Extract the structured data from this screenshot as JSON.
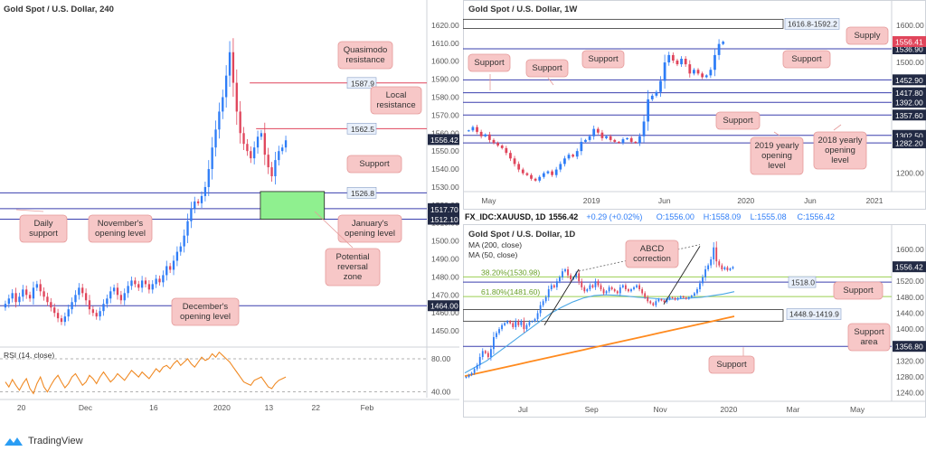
{
  "colors": {
    "up": "#2e7df7",
    "down": "#e0455b",
    "hline": "#3a3fae",
    "note_fill": "#f7c7c7",
    "note_stroke": "#e59a9a",
    "zone_fill": "#8ff08f",
    "rsi": "#f08a24",
    "ma200": "#ff8a1e",
    "ma50": "#4aa7e6",
    "tag_fill": "#e9f0fb",
    "tag_dark": "#222a44",
    "tag_red": "#e0455b",
    "fib": "#9ccf52"
  },
  "footer": {
    "brand": "TradingView"
  },
  "chart_data": [
    {
      "id": "h4",
      "type": "candlestick",
      "title": "Gold Spot / U.S. Dollar, 240",
      "ylim": [
        1443,
        1625
      ],
      "yticks": [
        "1620.00",
        "1610.00",
        "1600.00",
        "1590.00",
        "1580.00",
        "1570.00",
        "1560.00",
        "1550.00",
        "1540.00",
        "1530.00",
        "1520.00",
        "1510.00",
        "1500.00",
        "1490.00",
        "1480.00",
        "1470.00",
        "1460.00",
        "1450.00"
      ],
      "ytick_values": [
        1620,
        1610,
        1600,
        1590,
        1580,
        1570,
        1560,
        1550,
        1540,
        1530,
        1520,
        1510,
        1500,
        1490,
        1480,
        1470,
        1460,
        1450
      ],
      "xticks": [
        "20",
        "Dec",
        "16",
        "2020",
        "13",
        "22",
        "Feb"
      ],
      "xtick_positions": [
        0.05,
        0.2,
        0.36,
        0.52,
        0.63,
        0.74,
        0.86
      ],
      "closes": [
        1465,
        1468,
        1471,
        1466,
        1469,
        1473,
        1470,
        1468,
        1474,
        1476,
        1472,
        1469,
        1466,
        1463,
        1460,
        1457,
        1455,
        1458,
        1462,
        1466,
        1470,
        1474,
        1471,
        1467,
        1462,
        1460,
        1458,
        1461,
        1465,
        1468,
        1472,
        1474,
        1470,
        1467,
        1471,
        1475,
        1478,
        1476,
        1474,
        1478,
        1476,
        1473,
        1476,
        1479,
        1477,
        1481,
        1486,
        1484,
        1489,
        1494,
        1497,
        1503,
        1511,
        1518,
        1522,
        1521,
        1525,
        1530,
        1540,
        1552,
        1562,
        1572,
        1580,
        1592,
        1605,
        1588,
        1572,
        1560,
        1554,
        1550,
        1546,
        1552,
        1558,
        1560,
        1548,
        1541,
        1536,
        1545,
        1550,
        1552,
        1556
      ],
      "last_price": "1556.42",
      "hlines": [
        {
          "value": 1587.9,
          "label": "1587.9",
          "kind": "red",
          "x0": 0.585
        },
        {
          "value": 1562.5,
          "label": "1562.5",
          "kind": "red",
          "x0": 0.6
        },
        {
          "value": 1526.8,
          "label": "1526.8",
          "kind": "blue",
          "x0": 0.0
        },
        {
          "value": 1518.0,
          "label": "1518.00",
          "kind": "blue",
          "x0": 0.0
        },
        {
          "value": 1512.1,
          "label": "1512.10",
          "kind": "blue",
          "x0": 0.0
        },
        {
          "value": 1464.0,
          "label": "1464.00",
          "kind": "blue",
          "x0": 0.0
        }
      ],
      "axis_tags": [
        {
          "value": 1518.0,
          "label": "1518.00",
          "style": "dark"
        },
        {
          "value": 1517.7,
          "label": "1517.70",
          "style": "dark"
        },
        {
          "value": 1512.1,
          "label": "1512.10",
          "style": "dark"
        },
        {
          "value": 1464.0,
          "label": "1464.00",
          "style": "dark"
        },
        {
          "value": 1556.42,
          "label": "1556.42",
          "style": "dark"
        }
      ],
      "zone": {
        "y0": 1512.1,
        "y1": 1527.5,
        "x0": 0.61,
        "x1": 0.76
      },
      "annotations": [
        {
          "text": [
            "Quasimodo",
            "resistance"
          ]
        },
        {
          "text": [
            "Local",
            "resistance"
          ]
        },
        {
          "text": [
            "Support"
          ]
        },
        {
          "text": [
            "Daily",
            "support"
          ]
        },
        {
          "text": [
            "November's",
            "opening level"
          ]
        },
        {
          "text": [
            "January's",
            "opening level"
          ]
        },
        {
          "text": [
            "Potential",
            "reversal",
            "zone"
          ]
        },
        {
          "text": [
            "December's",
            "opening level"
          ]
        }
      ],
      "rsi": {
        "title": "RSI (14, close)",
        "ylim": [
          33,
          92
        ],
        "yticks": [
          "80.00",
          "40.00"
        ],
        "ytick_values": [
          80,
          40
        ],
        "values": [
          52,
          46,
          55,
          48,
          42,
          50,
          56,
          44,
          38,
          50,
          58,
          46,
          40,
          48,
          55,
          60,
          52,
          45,
          50,
          58,
          62,
          55,
          48,
          52,
          60,
          56,
          50,
          58,
          64,
          58,
          52,
          56,
          62,
          58,
          54,
          60,
          66,
          62,
          58,
          64,
          60,
          56,
          62,
          68,
          64,
          70,
          72,
          68,
          74,
          78,
          72,
          76,
          80,
          74,
          70,
          76,
          82,
          78,
          80,
          86,
          82,
          88,
          84,
          80,
          76,
          70,
          64,
          58,
          52,
          50,
          48,
          54,
          56,
          58,
          52,
          46,
          44,
          50,
          54,
          56,
          58
        ]
      }
    },
    {
      "id": "w1",
      "type": "candlestick",
      "title": "Gold Spot / U.S. Dollar, 1W",
      "ylim": [
        1160,
        1625
      ],
      "yticks": [
        "1600.00",
        "1500.00",
        "1400.00",
        "1300.00",
        "1200.00"
      ],
      "ytick_values": [
        1600,
        1500,
        1400,
        1300,
        1200
      ],
      "xticks": [
        "May",
        "2019",
        "Jun",
        "2020",
        "Jun",
        "2021"
      ],
      "xtick_positions": [
        0.06,
        0.3,
        0.47,
        0.66,
        0.81,
        0.96
      ],
      "closes": [
        1316,
        1325,
        1312,
        1300,
        1305,
        1290,
        1282,
        1275,
        1268,
        1255,
        1240,
        1225,
        1210,
        1200,
        1195,
        1185,
        1180,
        1190,
        1200,
        1205,
        1195,
        1210,
        1225,
        1240,
        1250,
        1245,
        1260,
        1285,
        1290,
        1300,
        1320,
        1310,
        1295,
        1300,
        1290,
        1285,
        1282,
        1292,
        1295,
        1285,
        1282,
        1300,
        1340,
        1400,
        1410,
        1420,
        1450,
        1500,
        1520,
        1505,
        1495,
        1510,
        1495,
        1470,
        1480,
        1470,
        1460,
        1465,
        1480,
        1520,
        1550,
        1556
      ],
      "last_price": "1556.41",
      "hlines": [
        {
          "value": 1536.9,
          "label": "1536.90"
        },
        {
          "value": 1452.9,
          "label": "1452.90"
        },
        {
          "value": 1417.8,
          "label": "1417.80"
        },
        {
          "value": 1392.0,
          "label": "1392.00"
        },
        {
          "value": 1357.6,
          "label": "1357.60"
        },
        {
          "value": 1302.5,
          "label": "1302.50"
        },
        {
          "value": 1282.2,
          "label": "1282.20"
        }
      ],
      "supply_box": {
        "label": "1616.8-1592.2",
        "y0": 1592.2,
        "y1": 1616.8
      },
      "annotations": [
        {
          "text": [
            "Supply"
          ]
        },
        {
          "text": [
            "Support"
          ]
        },
        {
          "text": [
            "Support"
          ]
        },
        {
          "text": [
            "Support"
          ]
        },
        {
          "text": [
            "Support"
          ]
        },
        {
          "text": [
            "Support"
          ]
        },
        {
          "text": [
            "2019 yearly",
            "opening",
            "level"
          ]
        },
        {
          "text": [
            "2018 yearly",
            "opening",
            "level"
          ]
        }
      ]
    },
    {
      "id": "d1",
      "type": "candlestick",
      "header": {
        "symbol": "FX_IDC:XAUUSD, 1D",
        "price": "1556.42",
        "change": "+0.29 (+0.02%)",
        "open": "O:1556.00",
        "high": "H:1558.09",
        "low": "L:1555.08",
        "close": "C:1556.42"
      },
      "title": "Gold Spot / U.S. Dollar, 1D",
      "legend": [
        "MA (200, close)",
        "MA (50, close)"
      ],
      "ylim": [
        1228,
        1618
      ],
      "yticks": [
        "1600.00",
        "1560.00",
        "1520.00",
        "1480.00",
        "1440.00",
        "1400.00",
        "1360.00",
        "1320.00",
        "1280.00",
        "1240.00"
      ],
      "ytick_values": [
        1600,
        1560,
        1520,
        1480,
        1440,
        1400,
        1360,
        1320,
        1280,
        1240
      ],
      "xticks": [
        "Jul",
        "Sep",
        "Nov",
        "2020",
        "Mar",
        "May"
      ],
      "xtick_positions": [
        0.14,
        0.3,
        0.46,
        0.62,
        0.77,
        0.92
      ],
      "closes": [
        1280,
        1285,
        1290,
        1300,
        1310,
        1330,
        1345,
        1340,
        1330,
        1350,
        1380,
        1390,
        1400,
        1410,
        1415,
        1420,
        1415,
        1405,
        1420,
        1410,
        1420,
        1400,
        1410,
        1418,
        1420,
        1425,
        1440,
        1460,
        1470,
        1480,
        1500,
        1510,
        1505,
        1520,
        1530,
        1545,
        1550,
        1535,
        1525,
        1530,
        1540,
        1520,
        1505,
        1495,
        1500,
        1510,
        1505,
        1520,
        1510,
        1500,
        1490,
        1495,
        1505,
        1500,
        1495,
        1490,
        1505,
        1510,
        1500,
        1495,
        1500,
        1505,
        1510,
        1500,
        1490,
        1480,
        1470,
        1465,
        1460,
        1470,
        1475,
        1472,
        1468,
        1475,
        1480,
        1478,
        1474,
        1478,
        1482,
        1479,
        1476,
        1480,
        1484,
        1490,
        1500,
        1515,
        1530,
        1550,
        1560,
        1575,
        1605,
        1570,
        1560,
        1550,
        1555,
        1548,
        1552,
        1556
      ],
      "last_price": "1556.42",
      "fibs": [
        {
          "label": "38.20%(1530.98)",
          "value": 1530.98
        },
        {
          "label": "61.80%(1481.60)",
          "value": 1481.6
        }
      ],
      "hlines": [
        {
          "value": 1518.0,
          "label": "1518.0"
        },
        {
          "value": 1356.8,
          "label": "1356.80"
        }
      ],
      "support_box": {
        "label": "1448.9-1419.9",
        "y0": 1419.9,
        "y1": 1448.9
      },
      "ma200": [
        1282,
        1288,
        1294,
        1300,
        1306,
        1312,
        1318,
        1324,
        1330,
        1336,
        1342,
        1348,
        1354,
        1360,
        1366,
        1372,
        1378,
        1384,
        1390,
        1396,
        1402,
        1408,
        1414,
        1420,
        1426,
        1432
      ],
      "ma50": [
        1290,
        1305,
        1320,
        1340,
        1360,
        1380,
        1400,
        1420,
        1440,
        1455,
        1468,
        1478,
        1484,
        1486,
        1485,
        1483,
        1480,
        1478,
        1476,
        1475,
        1476,
        1478,
        1480,
        1484,
        1488,
        1494
      ],
      "annotations": [
        {
          "text": [
            "ABCD",
            "correction"
          ]
        },
        {
          "text": [
            "Support"
          ]
        },
        {
          "text": [
            "Support",
            "area"
          ]
        },
        {
          "text": [
            "Support"
          ]
        }
      ]
    }
  ]
}
